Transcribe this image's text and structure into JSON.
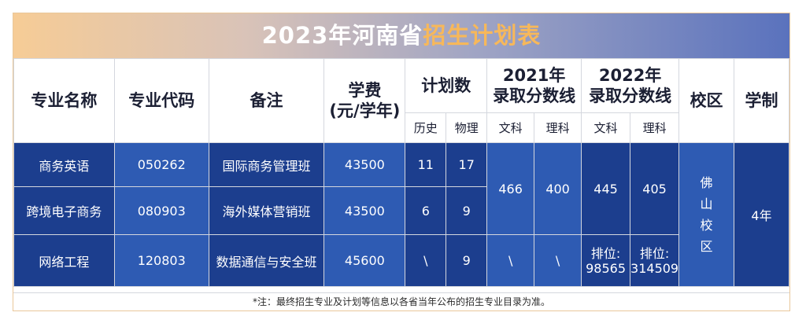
{
  "title": {
    "part1": "2023年河南省",
    "part2": "招生计划表"
  },
  "headers": {
    "major_name": "专业名称",
    "major_code": "专业代码",
    "remark": "备注",
    "fee_line1": "学费",
    "fee_line2": "(元/学年)",
    "plan": "计划数",
    "y2021_line1": "2021年",
    "y2021_line2": "录取分数线",
    "y2022_line1": "2022年",
    "y2022_line2": "录取分数线",
    "campus": "校区",
    "duration": "学制",
    "history": "历史",
    "physics": "物理",
    "wenke_2021": "文科",
    "like_2021": "理科",
    "wenke_2022": "文科",
    "like_2022": "理科"
  },
  "rows": [
    {
      "name": "商务英语",
      "code": "050262",
      "remark": "国际商务管理班",
      "fee": "43500",
      "history": "11",
      "physics": "17"
    },
    {
      "name": "跨境电子商务",
      "code": "080903",
      "remark": "海外媒体营销班",
      "fee": "43500",
      "history": "6",
      "physics": "9"
    },
    {
      "name": "网络工程",
      "code": "120803",
      "remark": "数据通信与安全班",
      "fee": "45600",
      "history": "\\",
      "physics": "9"
    }
  ],
  "scores_2021": {
    "wenke_top": "466",
    "like_top": "400",
    "wenke_bottom": "\\",
    "like_bottom": "\\"
  },
  "scores_2022": {
    "wenke_top": "445",
    "like_top": "405",
    "wenke_rank_label": "排位:",
    "wenke_rank": "98565",
    "like_rank_label": "排位:",
    "like_rank": "314509"
  },
  "campus": [
    "佛",
    "山",
    "校",
    "区"
  ],
  "duration": "4年",
  "note": "*注：最终招生专业及计划等信息以各省当年公布的招生专业目录为准。",
  "colors": {
    "row_light": "#2e5bb3",
    "row_dark": "#1c3e8e",
    "title_accent": "#f7b85a"
  }
}
